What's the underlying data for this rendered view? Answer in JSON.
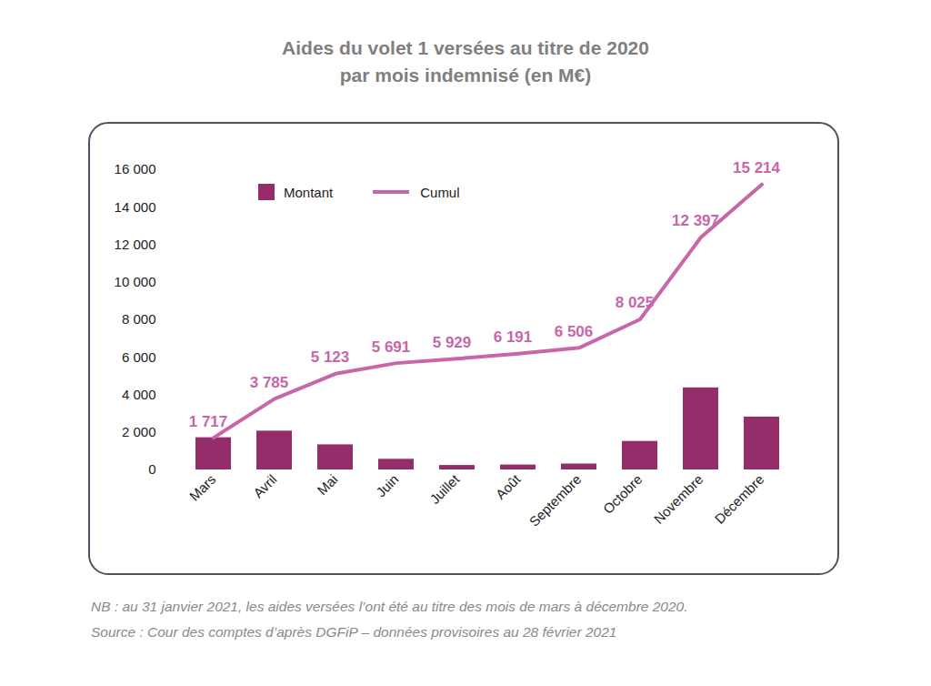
{
  "chart_data": {
    "type": "bar",
    "title": "Aides du volet 1 versées au titre de 2020\npar mois indemnisé (en M€)",
    "categories": [
      "Mars",
      "Avril",
      "Mai",
      "Juin",
      "Juillet",
      "Août",
      "Septembre",
      "Octobre",
      "Novembre",
      "Décembre"
    ],
    "series": [
      {
        "name": "Montant",
        "type": "bar",
        "color": "#952d6a",
        "values": [
          1717,
          2068,
          1338,
          568,
          238,
          262,
          315,
          1519,
          4372,
          2817
        ]
      },
      {
        "name": "Cumul",
        "type": "line",
        "color": "#c766a8",
        "data_labels": true,
        "values": [
          1717,
          3785,
          5123,
          5691,
          5929,
          6191,
          6506,
          8025,
          12397,
          15214
        ],
        "value_labels": [
          "1 717",
          "3 785",
          "5 123",
          "5 691",
          "5 929",
          "6 191",
          "6 506",
          "8 025",
          "12 397",
          "15 214"
        ]
      }
    ],
    "ylim": [
      0,
      16000
    ],
    "yticks": [
      0,
      {
        "value": 2000,
        "label": "2 000"
      },
      {
        "value": 4000,
        "label": "4 000"
      },
      {
        "value": 6000,
        "label": "6 000"
      },
      {
        "value": 8000,
        "label": "8 000"
      },
      {
        "value": 10000,
        "label": "10 000"
      },
      {
        "value": 12000,
        "label": "12 000"
      },
      {
        "value": 14000,
        "label": "14 000"
      },
      {
        "value": 16000,
        "label": "16 000"
      }
    ],
    "legend": "upper left",
    "grid": false,
    "notes": [
      "NB : au 31 janvier 2021, les aides versées l’ont été au titre des mois de mars à décembre 2020.",
      "Source : Cour des comptes d’après DGFiP – données provisoires au 28 février 2021"
    ]
  }
}
